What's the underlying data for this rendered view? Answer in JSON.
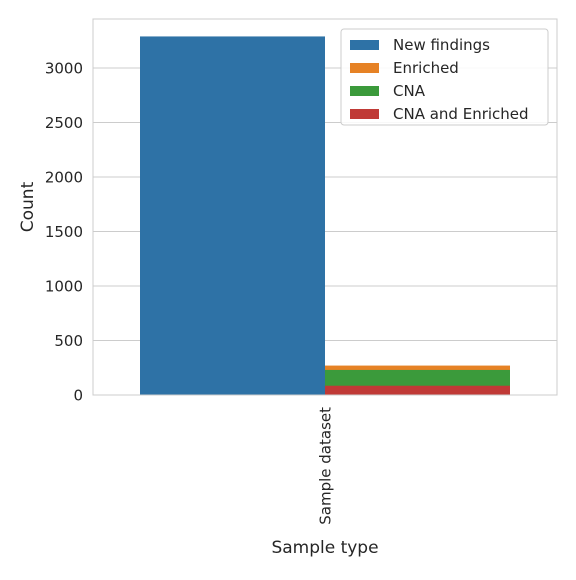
{
  "chart_data": {
    "type": "bar",
    "title": "",
    "xlabel": "Sample type",
    "ylabel": "Count",
    "categories": [
      "Sample dataset"
    ],
    "ylim": [
      0,
      3450
    ],
    "yticks": [
      0,
      500,
      1000,
      1500,
      2000,
      2500,
      3000
    ],
    "grid": true,
    "legend_position": "top-right",
    "layout": "two side-by-side bars per category; second bar stacks CNA and Enriched with Enriched on top",
    "series": [
      {
        "name": "New findings",
        "color": "#2e72a6",
        "values": [
          3290
        ]
      },
      {
        "name": "Enriched",
        "color": "#e68225",
        "values": [
          270
        ]
      },
      {
        "name": "CNA",
        "color": "#3b9a3b",
        "values": [
          230
        ]
      },
      {
        "name": "CNA and Enriched",
        "color": "#c03a36",
        "values": [
          85
        ]
      }
    ]
  }
}
